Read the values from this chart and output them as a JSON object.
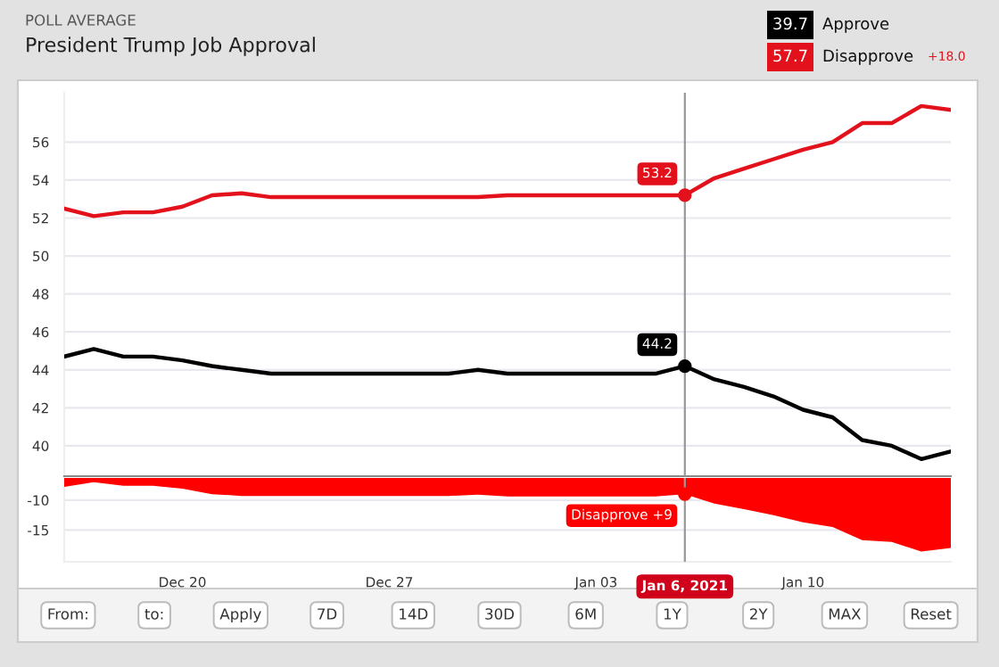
{
  "chart_data": [
    {
      "type": "line",
      "title": "President Trump Job Approval",
      "subtitle": "POLL AVERAGE",
      "legend": "top right",
      "grid": "y",
      "tick_labels": "y",
      "x": [
        "2020-12-16",
        "2020-12-17",
        "2020-12-18",
        "2020-12-19",
        "2020-12-20",
        "2020-12-21",
        "2020-12-22",
        "2020-12-23",
        "2020-12-24",
        "2020-12-25",
        "2020-12-26",
        "2020-12-27",
        "2020-12-28",
        "2020-12-29",
        "2020-12-30",
        "2020-12-31",
        "2021-01-01",
        "2021-01-02",
        "2021-01-03",
        "2021-01-04",
        "2021-01-05",
        "2021-01-06",
        "2021-01-07",
        "2021-01-08",
        "2021-01-09",
        "2021-01-10",
        "2021-01-11",
        "2021-01-12",
        "2021-01-13",
        "2021-01-14",
        "2021-01-15"
      ],
      "xlim": [
        "2020-12-16",
        "2021-01-15"
      ],
      "ylim": [
        38.4,
        58.6
      ],
      "yticks": [
        40,
        42,
        44,
        46,
        48,
        50,
        52,
        54,
        56
      ],
      "series": [
        {
          "name": "Approve",
          "color": "#000000",
          "values": [
            44.7,
            45.1,
            44.7,
            44.7,
            44.5,
            44.2,
            44.0,
            43.8,
            43.8,
            43.8,
            43.8,
            43.8,
            43.8,
            43.8,
            44.0,
            43.8,
            43.8,
            43.8,
            43.8,
            43.8,
            43.8,
            44.2,
            43.5,
            43.1,
            42.6,
            41.9,
            41.5,
            40.3,
            40.0,
            39.3,
            39.7
          ]
        },
        {
          "name": "Disapprove",
          "color": "#e2111b",
          "values": [
            52.5,
            52.1,
            52.3,
            52.3,
            52.6,
            53.2,
            53.3,
            53.1,
            53.1,
            53.1,
            53.1,
            53.1,
            53.1,
            53.1,
            53.1,
            53.2,
            53.2,
            53.2,
            53.2,
            53.2,
            53.2,
            53.2,
            54.1,
            54.6,
            55.1,
            55.6,
            56.0,
            57.0,
            57.0,
            57.9,
            57.7
          ]
        }
      ],
      "ref_lines": [
        {
          "axis": "x",
          "value": "2021-01-06",
          "color": "#999999"
        }
      ],
      "annotations": [
        "39.7",
        "57.7",
        "+18.0",
        {
          "text": "53.2",
          "x": "2021-01-06",
          "y": 53.2
        },
        {
          "text": "44.2",
          "x": "2021-01-06",
          "y": 44.2
        }
      ]
    },
    {
      "type": "area",
      "grid": "y",
      "x": [
        "2020-12-16",
        "2020-12-17",
        "2020-12-18",
        "2020-12-19",
        "2020-12-20",
        "2020-12-21",
        "2020-12-22",
        "2020-12-23",
        "2020-12-24",
        "2020-12-25",
        "2020-12-26",
        "2020-12-27",
        "2020-12-28",
        "2020-12-29",
        "2020-12-30",
        "2020-12-31",
        "2021-01-01",
        "2021-01-02",
        "2021-01-03",
        "2021-01-04",
        "2021-01-05",
        "2021-01-06",
        "2021-01-07",
        "2021-01-08",
        "2021-01-09",
        "2021-01-10",
        "2021-01-11",
        "2021-01-12",
        "2021-01-13",
        "2021-01-14",
        "2021-01-15"
      ],
      "xlim": [
        "2020-12-16",
        "2021-01-15"
      ],
      "ylim": [
        -20.3,
        -6.3
      ],
      "yticks": [
        -10,
        -15
      ],
      "xticks": [
        {
          "value": "2020-12-20",
          "label": "Dec 20"
        },
        {
          "value": "2020-12-27",
          "label": "Dec 27"
        },
        {
          "value": "2021-01-03",
          "label": "Jan 03"
        },
        {
          "value": "2021-01-10",
          "label": "Jan 10"
        }
      ],
      "series": [
        {
          "color": "#ff0000",
          "values": [
            -7.8,
            -7.0,
            -7.6,
            -7.6,
            -8.1,
            -9.0,
            -9.3,
            -9.3,
            -9.3,
            -9.3,
            -9.3,
            -9.3,
            -9.3,
            -9.3,
            -9.1,
            -9.4,
            -9.4,
            -9.4,
            -9.4,
            -9.4,
            -9.4,
            -9.0,
            -10.6,
            -11.5,
            -12.5,
            -13.7,
            -14.5,
            -16.7,
            -17.0,
            -18.6,
            -18.0
          ]
        }
      ],
      "ref_lines": [
        {
          "axis": "x",
          "value": "2021-01-06",
          "label": "Jan 6, 2021",
          "color": "#999999"
        }
      ],
      "annotations": [
        {
          "text": "Disapprove +9",
          "x": "2021-01-06",
          "y": -9.0
        }
      ]
    },
    {
      "type": "other",
      "annotations": [
        "From:",
        "to:",
        "Apply",
        "7D",
        "14D",
        "30D",
        "6M",
        "1Y",
        "2Y",
        "MAX",
        "Reset"
      ]
    }
  ]
}
